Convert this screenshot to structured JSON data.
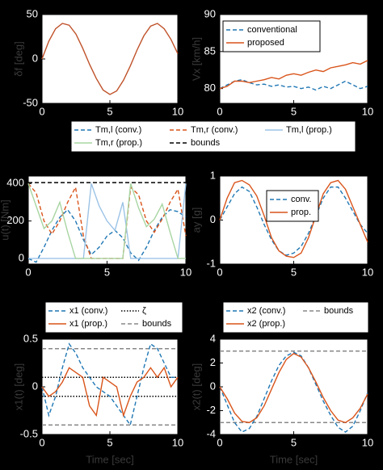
{
  "chart_data": [
    {
      "type": "line",
      "ylabel": "δf [deg]",
      "x": [
        0,
        0.5,
        1,
        1.5,
        2,
        2.5,
        3,
        3.5,
        4,
        4.5,
        5,
        5.5,
        6,
        6.5,
        7,
        7.5,
        8,
        8.5,
        9,
        9.5,
        10
      ],
      "xlim": [
        0,
        10
      ],
      "ylim": [
        -50,
        50
      ],
      "xticks": [
        0,
        5,
        10
      ],
      "yticks": [
        -50,
        0,
        50
      ],
      "series": [
        {
          "color": "#c0522a",
          "style": "solid",
          "values": [
            0,
            20,
            34,
            40,
            38,
            28,
            12,
            -6,
            -22,
            -35,
            -40,
            -36,
            -24,
            -8,
            10,
            26,
            37,
            40,
            34,
            22,
            6
          ]
        }
      ]
    },
    {
      "type": "line",
      "ylabel": "Vx [km/h]",
      "x": [
        0,
        0.5,
        1,
        1.5,
        2,
        2.5,
        3,
        3.5,
        4,
        4.5,
        5,
        5.5,
        6,
        6.5,
        7,
        7.5,
        8,
        8.5,
        9,
        9.5,
        10
      ],
      "xlim": [
        0,
        10
      ],
      "ylim": [
        78,
        90
      ],
      "xticks": [
        0,
        5,
        10
      ],
      "yticks": [
        80,
        85,
        90
      ],
      "series": [
        {
          "name": "conventional",
          "color": "#1f77b4",
          "style": "dashed",
          "values": [
            80,
            80.5,
            81,
            81.2,
            80.8,
            80.5,
            80.6,
            80.3,
            80.5,
            80.2,
            80.3,
            80,
            80.2,
            79.8,
            80.3,
            80,
            80.5,
            81,
            80.5,
            80,
            80.3
          ]
        },
        {
          "name": "proposed",
          "color": "#d9541a",
          "style": "solid",
          "values": [
            80,
            80.3,
            81,
            81,
            80.8,
            81,
            81.2,
            81.5,
            81.3,
            81.8,
            82,
            81.8,
            82.2,
            82.5,
            82.3,
            82.8,
            83,
            83.2,
            83.5,
            83.3,
            83.8
          ]
        }
      ]
    },
    {
      "type": "line",
      "ylabel": "u(t) [Nm]",
      "x": [
        0,
        0.5,
        1,
        1.5,
        2,
        2.5,
        3,
        3.5,
        4,
        4.5,
        5,
        5.5,
        6,
        6.5,
        7,
        7.5,
        8,
        8.5,
        9,
        9.5,
        10
      ],
      "xlim": [
        0,
        10
      ],
      "ylim": [
        -30,
        440
      ],
      "xticks": [
        0,
        5,
        10
      ],
      "yticks": [
        0,
        200,
        400
      ],
      "series": [
        {
          "name": "Tm,l (conv.)",
          "color": "#1f77b4",
          "style": "dashed",
          "values": [
            0,
            -20,
            60,
            150,
            220,
            260,
            200,
            100,
            20,
            60,
            120,
            150,
            110,
            30,
            -10,
            60,
            150,
            220,
            260,
            250,
            220
          ]
        },
        {
          "name": "Tm,r (conv.)",
          "color": "#d9541a",
          "style": "dashed",
          "values": [
            400,
            350,
            200,
            130,
            200,
            300,
            380,
            120,
            0,
            0,
            0,
            0,
            0,
            380,
            340,
            200,
            140,
            210,
            300,
            370,
            120
          ]
        },
        {
          "name": "Tm,l (prop.)",
          "color": "#9cc3e6",
          "style": "solid",
          "values": [
            0,
            0,
            0,
            0,
            0,
            0,
            0,
            0,
            400,
            280,
            200,
            150,
            300,
            0,
            0,
            0,
            0,
            0,
            0,
            0,
            400
          ]
        },
        {
          "name": "Tm,r (prop.)",
          "color": "#a8d5a2",
          "style": "solid",
          "values": [
            400,
            280,
            160,
            200,
            300,
            140,
            0,
            0,
            0,
            0,
            0,
            0,
            0,
            400,
            270,
            170,
            210,
            290,
            140,
            0,
            0
          ]
        }
      ],
      "hlines": [
        {
          "name": "bounds",
          "color": "#000000",
          "style": "dashed",
          "y": [
            405
          ]
        }
      ]
    },
    {
      "type": "line",
      "ylabel": "ay [g]",
      "x": [
        0,
        0.5,
        1,
        1.5,
        2,
        2.5,
        3,
        3.5,
        4,
        4.5,
        5,
        5.5,
        6,
        6.5,
        7,
        7.5,
        8,
        8.5,
        9,
        9.5,
        10
      ],
      "xlim": [
        0,
        10
      ],
      "ylim": [
        -1,
        1
      ],
      "xticks": [
        0,
        5,
        10
      ],
      "yticks": [
        -1,
        0,
        1
      ],
      "series": [
        {
          "name": "conv.",
          "color": "#1f77b4",
          "style": "dashed",
          "values": [
            0,
            0.3,
            0.6,
            0.75,
            0.65,
            0.3,
            -0.1,
            -0.45,
            -0.7,
            -0.8,
            -0.75,
            -0.6,
            -0.3,
            0.1,
            0.5,
            0.75,
            0.75,
            0.5,
            0.2,
            -0.1,
            -0.3
          ]
        },
        {
          "name": "prop.",
          "color": "#d9541a",
          "style": "solid",
          "values": [
            0,
            0.5,
            0.85,
            0.9,
            0.8,
            0.55,
            0.1,
            -0.4,
            -0.7,
            -0.82,
            -0.85,
            -0.75,
            -0.4,
            0.1,
            0.6,
            0.85,
            0.9,
            0.7,
            0.3,
            -0.1,
            -0.5
          ]
        }
      ]
    },
    {
      "type": "line",
      "ylabel": "x1(t) [deg]",
      "xlabel": "Time [sec]",
      "x": [
        0,
        0.5,
        1,
        1.5,
        2,
        2.5,
        3,
        3.5,
        4,
        4.5,
        5,
        5.5,
        6,
        6.5,
        7,
        7.5,
        8,
        8.5,
        9,
        9.5,
        10
      ],
      "xlim": [
        0,
        10
      ],
      "ylim": [
        -0.5,
        0.5
      ],
      "xticks": [
        0,
        5,
        10
      ],
      "yticks": [
        -0.5,
        0,
        0.5
      ],
      "series": [
        {
          "name": "x1 (conv.)",
          "color": "#1f77b4",
          "style": "dashed",
          "values": [
            0,
            -0.3,
            -0.1,
            0.2,
            0.45,
            0.35,
            0.2,
            0.1,
            0,
            -0.05,
            -0.1,
            -0.2,
            -0.3,
            -0.4,
            -0.1,
            0.2,
            0.45,
            0.4,
            0.25,
            0.1,
            0.1
          ]
        },
        {
          "name": "x1 (prop.)",
          "color": "#d9541a",
          "style": "solid",
          "values": [
            0,
            -0.1,
            -0.05,
            0.05,
            0.2,
            0.15,
            0.1,
            -0.2,
            -0.3,
            0.1,
            0.05,
            0,
            -0.3,
            -0.1,
            0.05,
            0.1,
            0.2,
            0.1,
            0.2,
            0,
            0.1
          ]
        }
      ],
      "hlines": [
        {
          "name": "ζ",
          "color": "#000000",
          "style": "dotted",
          "y": [
            0.1,
            -0.1
          ]
        },
        {
          "name": "bounds",
          "color": "#888888",
          "style": "dashed",
          "y": [
            0.4,
            -0.4
          ]
        }
      ]
    },
    {
      "type": "line",
      "ylabel": "x2(t) [deg]",
      "xlabel": "Time [sec]",
      "x": [
        0,
        0.5,
        1,
        1.5,
        2,
        2.5,
        3,
        3.5,
        4,
        4.5,
        5,
        5.5,
        6,
        6.5,
        7,
        7.5,
        8,
        8.5,
        9,
        9.5,
        10
      ],
      "xlim": [
        0,
        10
      ],
      "ylim": [
        -4,
        4
      ],
      "xticks": [
        0,
        5,
        10
      ],
      "yticks": [
        -4,
        -2,
        0,
        2,
        4
      ],
      "series": [
        {
          "name": "x2 (conv.)",
          "color": "#1f77b4",
          "style": "dashed",
          "values": [
            0,
            -1.5,
            -3,
            -3.8,
            -3.5,
            -2.5,
            -1,
            0.5,
            1.8,
            2.6,
            2.9,
            2.6,
            1.6,
            0.2,
            -1.2,
            -2.4,
            -3.4,
            -3.8,
            -3.3,
            -2,
            -0.5
          ]
        },
        {
          "name": "x2 (prop.)",
          "color": "#d9541a",
          "style": "solid",
          "values": [
            0,
            -1,
            -2.2,
            -2.9,
            -3,
            -2.6,
            -1.6,
            -0.2,
            1.2,
            2.3,
            2.8,
            2.5,
            1.6,
            0.4,
            -0.9,
            -2,
            -2.8,
            -3,
            -2.6,
            -1.8,
            -0.6
          ]
        }
      ],
      "hlines": [
        {
          "name": "bounds",
          "color": "#888888",
          "style": "dashed",
          "y": [
            3,
            -3
          ]
        }
      ]
    }
  ]
}
